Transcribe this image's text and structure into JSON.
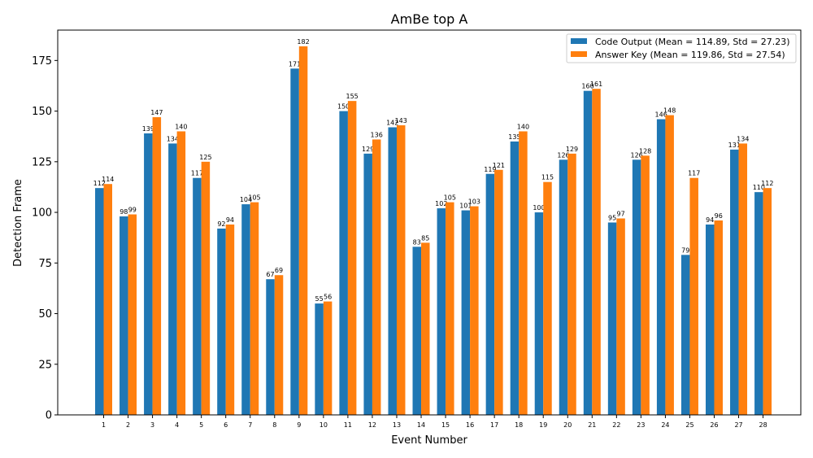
{
  "chart_data": {
    "type": "bar",
    "title": "AmBe top A",
    "xlabel": "Event Number",
    "ylabel": "Detection Frame",
    "ylim": [
      0,
      190
    ],
    "yticks": [
      0,
      25,
      50,
      75,
      100,
      125,
      150,
      175
    ],
    "grid": false,
    "legend_position": "top-right",
    "categories": [
      "1",
      "2",
      "3",
      "4",
      "5",
      "6",
      "7",
      "8",
      "9",
      "10",
      "11",
      "12",
      "13",
      "14",
      "15",
      "16",
      "17",
      "18",
      "19",
      "20",
      "21",
      "22",
      "23",
      "24",
      "25",
      "26",
      "27",
      "28"
    ],
    "series": [
      {
        "name": "Code Output (Mean = 114.89, Std = 27.23)",
        "color": "#1f77b4",
        "values": [
          112,
          98,
          139,
          134,
          117,
          92,
          104,
          67,
          171,
          55,
          150,
          129,
          142,
          83,
          102,
          101,
          119,
          135,
          100,
          126,
          160,
          95,
          126,
          146,
          79,
          94,
          131,
          110
        ]
      },
      {
        "name": "Answer Key (Mean = 119.86, Std = 27.54)",
        "color": "#ff7f0e",
        "values": [
          114,
          99,
          147,
          140,
          125,
          94,
          105,
          69,
          182,
          56,
          155,
          136,
          143,
          85,
          105,
          103,
          121,
          140,
          115,
          129,
          161,
          97,
          128,
          148,
          117,
          96,
          134,
          112
        ]
      }
    ]
  }
}
